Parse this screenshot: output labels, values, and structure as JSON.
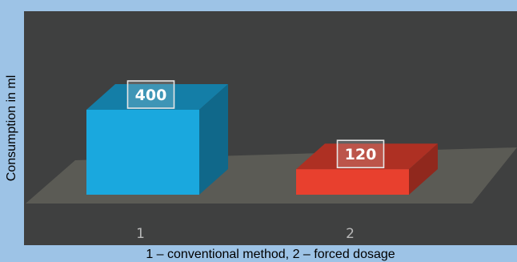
{
  "chart_data": {
    "type": "bar",
    "categories": [
      "1",
      "2"
    ],
    "values": [
      400,
      120
    ],
    "data_labels": [
      "400",
      "120"
    ],
    "ylabel": "Consumption in ml",
    "xlabel": "1 – conventional method, 2 – forced dosage",
    "style": "3d",
    "series_colors": [
      "#1aa8de",
      "#e8402e"
    ],
    "background_color": "#3f4040",
    "frame_color": "#9dc3e6",
    "grid": false,
    "legend": "none"
  }
}
